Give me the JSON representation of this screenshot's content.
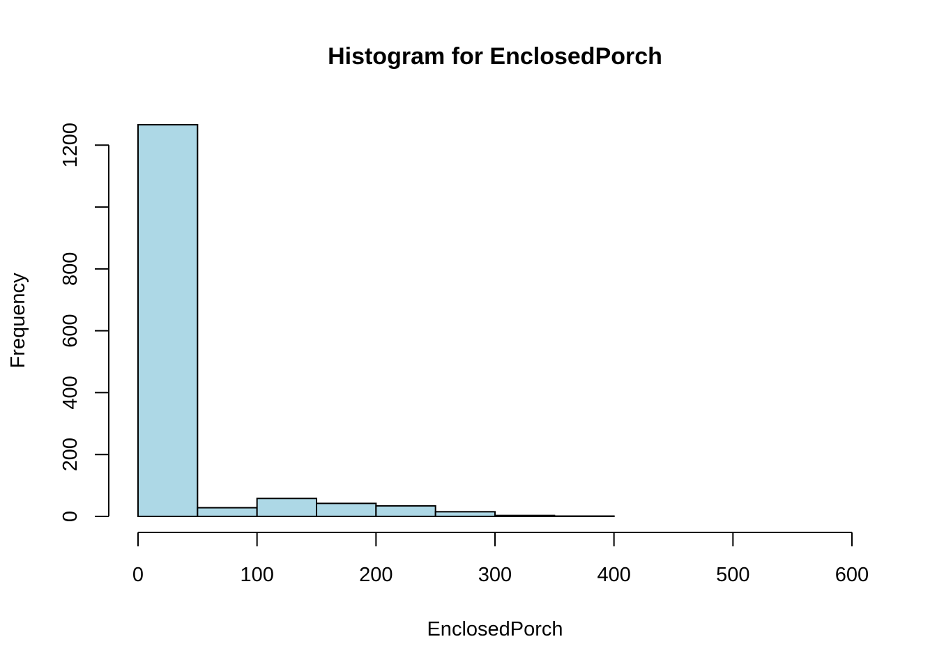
{
  "chart_data": {
    "type": "bar",
    "title": "Histogram for EnclosedPorch",
    "xlabel": "EnclosedPorch",
    "ylabel": "Frequency",
    "bin_edges": [
      0,
      50,
      100,
      150,
      200,
      250,
      300,
      350,
      400,
      450,
      500,
      550,
      600
    ],
    "values": [
      1266,
      28,
      58,
      42,
      34,
      15,
      3,
      1,
      0,
      0,
      0,
      0
    ],
    "xlim": [
      0,
      600
    ],
    "ylim": [
      0,
      1266
    ],
    "x_ticks": [
      0,
      100,
      200,
      300,
      400,
      500,
      600
    ],
    "x_tick_labels": [
      "0",
      "100",
      "200",
      "300",
      "400",
      "500",
      "600"
    ],
    "y_ticks": [
      0,
      200,
      400,
      600,
      800,
      1000,
      1200
    ],
    "y_tick_labels": [
      "0",
      "200",
      "400",
      "600",
      "800",
      "",
      "1200"
    ],
    "grid": false,
    "bar_color": "#add8e6",
    "edge_color": "#000000"
  }
}
